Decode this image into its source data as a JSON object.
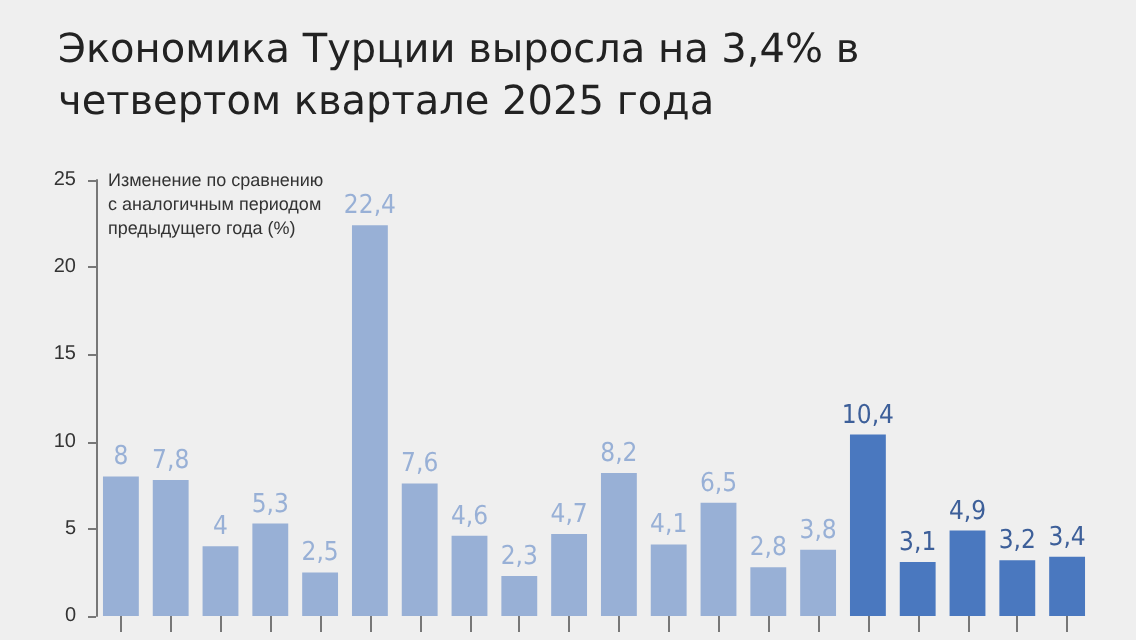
{
  "chart_data": {
    "type": "bar",
    "title": "Экономика Турции выросла на 3,4% в\nчетвертом квартале 2025 года",
    "annotations": [
      "Изменение по сравнению\nс аналогичным периодом\nпредыдущего года (%)"
    ],
    "categories": [
      null,
      null,
      null,
      null,
      null,
      null,
      null,
      null,
      null,
      null,
      null,
      null,
      null,
      null,
      null,
      null,
      null,
      null,
      null,
      null
    ],
    "values": [
      8,
      7.8,
      4,
      5.3,
      2.5,
      22.4,
      7.6,
      4.6,
      2.3,
      4.7,
      8.2,
      4.1,
      6.5,
      2.8,
      3.8,
      10.4,
      3.1,
      4.9,
      3.2,
      3.4
    ],
    "value_labels": [
      "8",
      "7,8",
      "4",
      "5,3",
      "2,5",
      "22,4",
      "7,6",
      "4,6",
      "2,3",
      "4,7",
      "8,2",
      "4,1",
      "6,5",
      "2,8",
      "3,8",
      "10,4",
      "3,1",
      "4,9",
      "3,2",
      "3,4"
    ],
    "colors": [
      "#98b0d6",
      "#98b0d6",
      "#98b0d6",
      "#98b0d6",
      "#98b0d6",
      "#98b0d6",
      "#98b0d6",
      "#98b0d6",
      "#98b0d6",
      "#98b0d6",
      "#98b0d6",
      "#98b0d6",
      "#98b0d6",
      "#98b0d6",
      "#98b0d6",
      "#4a78bf",
      "#4a78bf",
      "#4a78bf",
      "#4a78bf",
      "#4a78bf"
    ],
    "ylim": [
      0,
      25
    ],
    "yticks": [
      0,
      5,
      10,
      15,
      20,
      25
    ],
    "grid": false
  }
}
